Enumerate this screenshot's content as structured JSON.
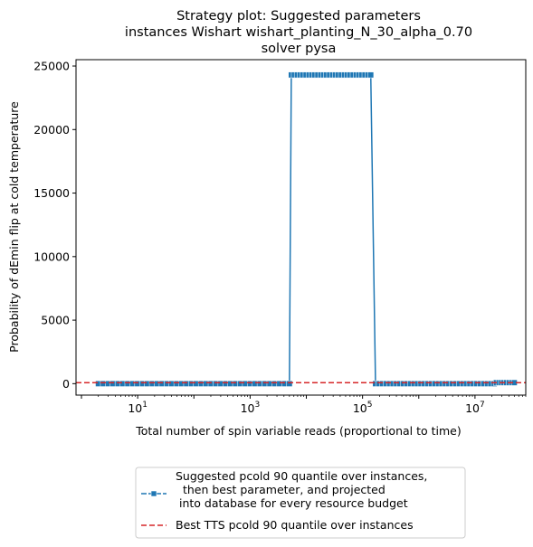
{
  "chart_data": {
    "type": "line",
    "title": [
      "Strategy plot: Suggested parameters",
      "instances Wishart wishart_planting_N_30_alpha_0.70",
      "solver pysa"
    ],
    "xlabel": "Total number of spin variable reads (proportional to time)",
    "ylabel": "Probability of dEmin flip at cold temperature",
    "xscale": "log",
    "xlim": [
      0.8,
      80000000
    ],
    "ylim": [
      -900,
      25500
    ],
    "yticks": [
      0,
      5000,
      10000,
      15000,
      20000,
      25000
    ],
    "xticks": [
      {
        "value": 10,
        "base": "10",
        "exp": "1"
      },
      {
        "value": 1000,
        "base": "10",
        "exp": "3"
      },
      {
        "value": 100000,
        "base": "10",
        "exp": "5"
      },
      {
        "value": 10000000,
        "base": "10",
        "exp": "7"
      }
    ],
    "grid": false,
    "legend_position": "below plot",
    "series": [
      {
        "name": "Suggested pcold 90 quantile over instances,\n  then best parameter, and projected\n into database for every resource budget",
        "color": "#1f77b4",
        "marker": "square",
        "linestyle": "solid",
        "segments": [
          {
            "x_start": 2,
            "x_end": 5000,
            "y": 0,
            "points": 40
          },
          {
            "x_start": 5400,
            "x_end": 140000,
            "y": 24300,
            "points": 28
          },
          {
            "x_start": 170000,
            "x_end": 22000000,
            "y": 0,
            "points": 35
          },
          {
            "x_start": 24000000,
            "x_end": 50000000,
            "y": 80,
            "points": 8
          }
        ]
      },
      {
        "name": "Best TTS pcold 90 quantile over instances",
        "color": "#d62728",
        "linestyle": "dashed",
        "y": 80
      }
    ]
  }
}
